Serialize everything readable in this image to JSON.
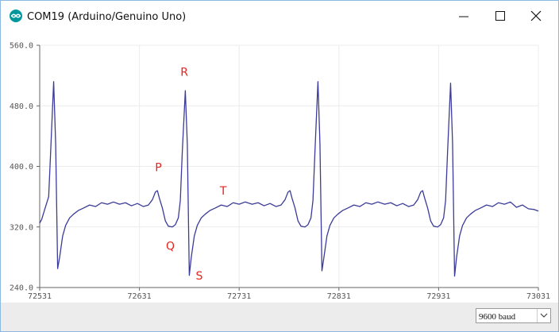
{
  "window": {
    "title": "COM19 (Arduino/Genuino Uno)"
  },
  "chart_data": {
    "type": "line",
    "x": [
      72531,
      72533,
      72536,
      72540,
      72542,
      72545,
      72547,
      72549,
      72551,
      72554,
      72557,
      72561,
      72565,
      72570,
      72575,
      72581,
      72587,
      72593,
      72599,
      72605,
      72611,
      72617,
      72623,
      72629,
      72635,
      72640,
      72644,
      72647,
      72649,
      72651,
      72654,
      72657,
      72660,
      72664,
      72667,
      72670,
      72672,
      72674,
      72677,
      72679,
      72681,
      72683,
      72686,
      72689,
      72693,
      72697,
      72702,
      72707,
      72713,
      72719,
      72725,
      72731,
      72737,
      72744,
      72750,
      72756,
      72762,
      72768,
      72773,
      72777,
      72780,
      72782,
      72784,
      72787,
      72790,
      72793,
      72797,
      72800,
      72803,
      72805,
      72807,
      72810,
      72812,
      72814,
      72816,
      72819,
      72822,
      72826,
      72830,
      72835,
      72840,
      72846,
      72852,
      72858,
      72864,
      72870,
      72877,
      72883,
      72889,
      72895,
      72901,
      72906,
      72910,
      72913,
      72915,
      72917,
      72920,
      72923,
      72926,
      72930,
      72933,
      72936,
      72938,
      72940,
      72943,
      72945,
      72947,
      72949,
      72952,
      72955,
      72959,
      72963,
      72968,
      72973,
      72979,
      72985,
      72991,
      72997,
      73003,
      73009,
      73015,
      73021,
      73027,
      73031
    ],
    "series": [
      {
        "color": "#3b3b98",
        "values": [
          325,
          330,
          343,
          360,
          420,
          512,
          430,
          265,
          280,
          308,
          322,
          332,
          337,
          342,
          345,
          349,
          347,
          352,
          350,
          353,
          350,
          352,
          348,
          351,
          347,
          349,
          356,
          366,
          368,
          358,
          345,
          328,
          321,
          320,
          323,
          332,
          355,
          420,
          500,
          430,
          256,
          280,
          308,
          322,
          332,
          337,
          342,
          345,
          349,
          347,
          352,
          350,
          353,
          350,
          352,
          348,
          351,
          347,
          349,
          356,
          366,
          368,
          358,
          345,
          328,
          321,
          320,
          323,
          332,
          355,
          420,
          512,
          430,
          262,
          280,
          308,
          322,
          332,
          337,
          342,
          345,
          349,
          347,
          352,
          350,
          353,
          350,
          352,
          348,
          351,
          347,
          349,
          356,
          366,
          368,
          358,
          345,
          328,
          321,
          320,
          323,
          332,
          355,
          420,
          510,
          430,
          255,
          280,
          308,
          322,
          332,
          337,
          342,
          345,
          349,
          347,
          352,
          350,
          353,
          346,
          349,
          344,
          343,
          341
        ]
      }
    ],
    "xlim": [
      72531,
      73031
    ],
    "ylim": [
      240,
      560
    ],
    "xticks": [
      72531,
      72631,
      72731,
      72831,
      72931,
      73031
    ],
    "yticks": [
      {
        "value": 240,
        "label": "240.0"
      },
      {
        "value": 320,
        "label": "320.0"
      },
      {
        "value": 400,
        "label": "400.0"
      },
      {
        "value": 480,
        "label": "480.0"
      },
      {
        "value": 560,
        "label": "560.0"
      }
    ],
    "grid": true,
    "annotations": [
      {
        "text": "P",
        "x": 72650,
        "y": 399
      },
      {
        "text": "Q",
        "x": 72662,
        "y": 295
      },
      {
        "text": "R",
        "x": 72676,
        "y": 525
      },
      {
        "text": "S",
        "x": 72691,
        "y": 256
      },
      {
        "text": "T",
        "x": 72715,
        "y": 368
      }
    ]
  },
  "footer": {
    "baud": "9600 baud"
  }
}
